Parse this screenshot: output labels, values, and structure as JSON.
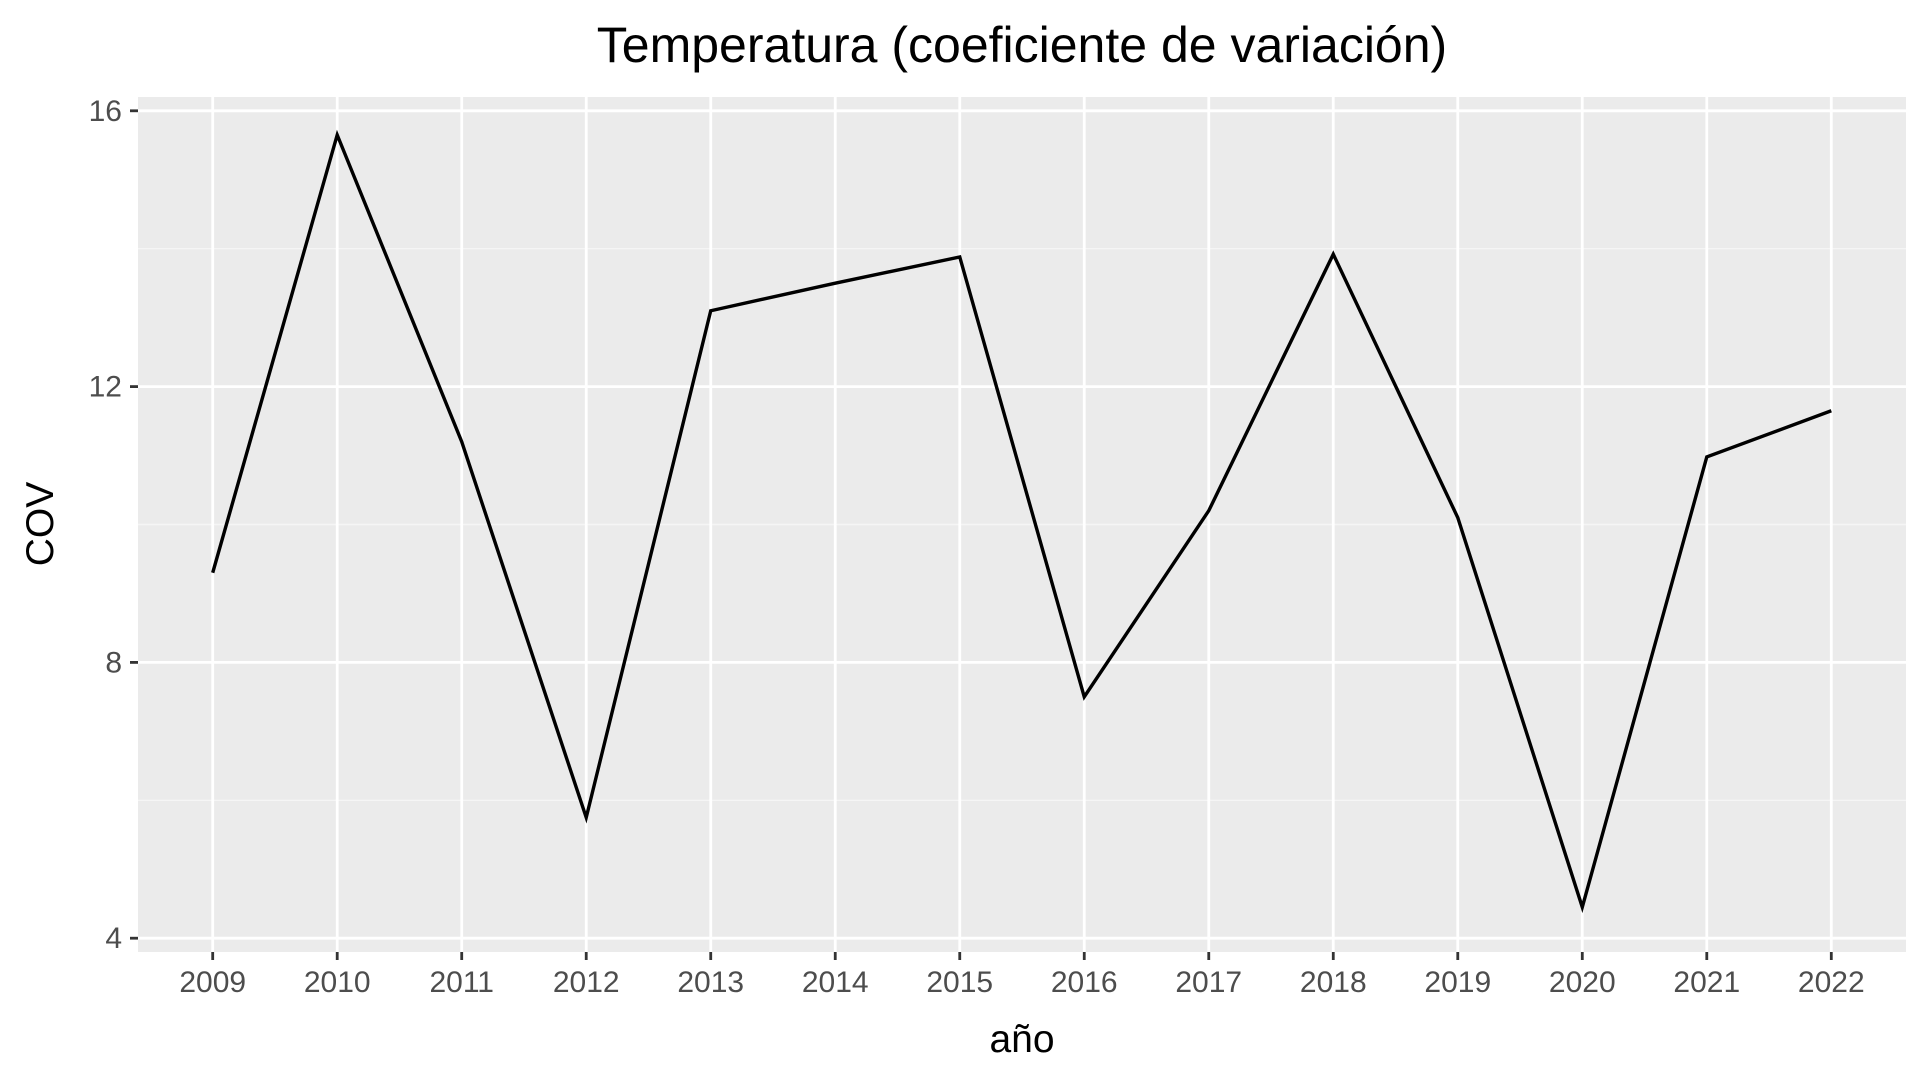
{
  "chart_data": {
    "type": "line",
    "title": "Temperatura (coeficiente de variación)",
    "xlabel": "año",
    "ylabel": "COV",
    "x": [
      2009,
      2010,
      2011,
      2012,
      2013,
      2014,
      2015,
      2016,
      2017,
      2018,
      2019,
      2020,
      2021,
      2022
    ],
    "series": [
      {
        "values": [
          9.3,
          15.65,
          11.2,
          5.75,
          13.1,
          13.5,
          13.88,
          7.5,
          10.2,
          13.92,
          10.1,
          4.45,
          10.98,
          11.65
        ]
      }
    ],
    "xlim": [
      2008.4,
      2022.6
    ],
    "ylim": [
      3.8,
      16.2
    ],
    "yticks": [
      4,
      8,
      12,
      16
    ],
    "xticks": [
      2009,
      2010,
      2011,
      2012,
      2013,
      2014,
      2015,
      2016,
      2017,
      2018,
      2019,
      2020,
      2021,
      2022
    ],
    "grid": true,
    "legend": "none",
    "colors": {
      "panel_background": "#ebebeb",
      "grid_major": "#ffffff",
      "grid_minor": "#f5f5f5",
      "line": "#000000",
      "tick_mark": "#333333",
      "tick_text": "#4d4d4d"
    }
  }
}
